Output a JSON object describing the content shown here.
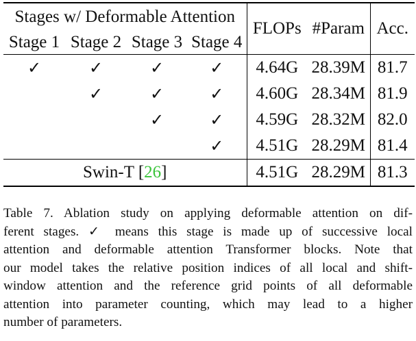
{
  "table": {
    "group_header": "Stages w/ Deformable Attention",
    "stage_headers": [
      "Stage 1",
      "Stage 2",
      "Stage 3",
      "Stage 4"
    ],
    "metric_headers": [
      "FLOPs",
      "#Param",
      "Acc."
    ],
    "check_mark": "✓",
    "rows": [
      {
        "stages": [
          true,
          true,
          true,
          true
        ],
        "flops": "4.64G",
        "params": "28.39M",
        "acc": "81.7"
      },
      {
        "stages": [
          false,
          true,
          true,
          true
        ],
        "flops": "4.60G",
        "params": "28.34M",
        "acc": "81.9"
      },
      {
        "stages": [
          false,
          false,
          true,
          true
        ],
        "flops": "4.59G",
        "params": "28.32M",
        "acc": "82.0"
      },
      {
        "stages": [
          false,
          false,
          false,
          true
        ],
        "flops": "4.51G",
        "params": "28.29M",
        "acc": "81.4"
      }
    ],
    "baseline": {
      "name": "Swin-T",
      "ref": "26",
      "ref_open": "[",
      "ref_close": "]",
      "flops": "4.51G",
      "params": "28.29M",
      "acc": "81.3"
    }
  },
  "caption": {
    "lines": [
      "Table 7. Ablation study on applying deformable attention on dif-",
      "ferent stages. ✓ means this stage is made up of successive local",
      "attention and deformable attention Transformer blocks. Note that",
      "our model takes the relative position indices of all local and shift-",
      "window attention and the reference grid points of all deformable",
      "attention into parameter counting, which may lead to a higher",
      "number of parameters."
    ]
  }
}
